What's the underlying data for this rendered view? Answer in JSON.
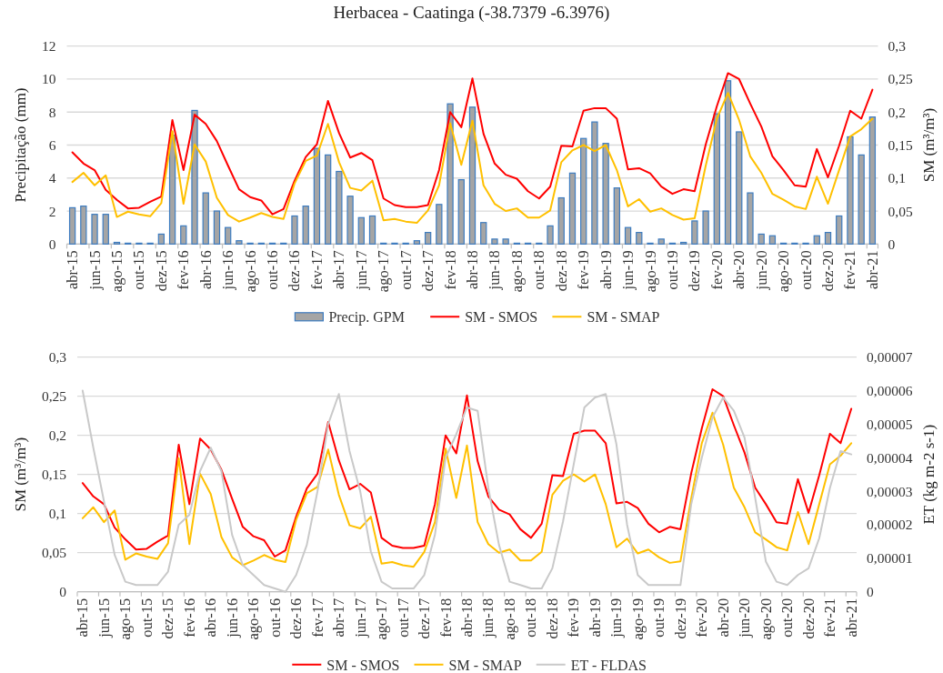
{
  "chart_data": [
    {
      "type": "bar",
      "title": "Herbacea - Caatinga (-38.7379 -6.3976)",
      "ylabel": "Precipitação (mm)",
      "y2label": "SM (m³/m³)",
      "categories": [
        "abr-15",
        null,
        "jun-15",
        null,
        "ago-15",
        null,
        "out-15",
        null,
        "dez-15",
        null,
        "fev-16",
        null,
        "abr-16",
        null,
        "jun-16",
        null,
        "ago-16",
        null,
        "out-16",
        null,
        "dez-16",
        null,
        "fev-17",
        null,
        "abr-17",
        null,
        "jun-17",
        null,
        "ago-17",
        null,
        "out-17",
        null,
        "dez-17",
        null,
        "fev-18",
        null,
        "abr-18",
        null,
        "jun-18",
        null,
        "ago-18",
        null,
        "out-18",
        null,
        "dez-18",
        null,
        "fev-19",
        null,
        "abr-19",
        null,
        "jun-19",
        null,
        "ago-19",
        null,
        "out-19",
        null,
        "dez-19",
        null,
        "fev-20",
        null,
        "abr-20",
        null,
        "jun-20",
        null,
        "ago-20",
        null,
        "out-20",
        null,
        "dez-20",
        null,
        "fev-21",
        null,
        "abr-21"
      ],
      "series": [
        {
          "name": "Precip. GPM",
          "color": "#a5a5a5",
          "values": [
            2.2,
            2.3,
            1.8,
            1.8,
            0.1,
            0.05,
            0.05,
            0.05,
            0.6,
            6.6,
            1.1,
            8.1,
            3.1,
            2.0,
            1.0,
            0.2,
            0.05,
            0.05,
            0.05,
            0.05,
            1.7,
            2.3,
            5.8,
            5.4,
            4.4,
            2.9,
            1.6,
            1.7,
            0.05,
            0.05,
            0.05,
            0.2,
            0.7,
            2.4,
            8.5,
            3.9,
            8.3,
            1.3,
            0.3,
            0.3,
            0.05,
            0.05,
            0.05,
            1.1,
            2.8,
            4.3,
            6.4,
            7.4,
            6.1,
            3.4,
            1.0,
            0.7,
            0.05,
            0.3,
            0.05,
            0.1,
            1.4,
            2.0,
            7.9,
            9.9,
            6.8,
            3.1,
            0.6,
            0.5,
            0.05,
            0.05,
            0.05,
            0.5,
            0.7,
            1.7,
            6.5,
            5.4,
            7.7
          ]
        },
        {
          "name": "SM - SMOS",
          "type": "line",
          "axis": "y2",
          "color": "#ff0000",
          "values": [
            0.139,
            0.122,
            0.112,
            0.082,
            0.067,
            0.054,
            0.055,
            0.064,
            0.072,
            0.188,
            0.112,
            0.196,
            0.182,
            0.156,
            0.119,
            0.083,
            0.071,
            0.066,
            0.045,
            0.053,
            0.096,
            0.132,
            0.151,
            0.217,
            0.168,
            0.131,
            0.138,
            0.127,
            0.069,
            0.059,
            0.056,
            0.056,
            0.059,
            0.112,
            0.2,
            0.177,
            0.251,
            0.167,
            0.122,
            0.105,
            0.099,
            0.08,
            0.069,
            0.087,
            0.149,
            0.148,
            0.202,
            0.206,
            0.206,
            0.19,
            0.113,
            0.115,
            0.107,
            0.087,
            0.076,
            0.083,
            0.08,
            0.151,
            0.209,
            0.259,
            0.25,
            0.213,
            0.178,
            0.133,
            0.112,
            0.089,
            0.087,
            0.144,
            0.101,
            0.149,
            0.202,
            0.19,
            0.234
          ]
        },
        {
          "name": "SM - SMAP",
          "type": "line",
          "axis": "y2",
          "color": "#ffc000",
          "values": [
            0.094,
            0.108,
            0.089,
            0.104,
            0.041,
            0.049,
            0.045,
            0.042,
            0.062,
            0.171,
            0.061,
            0.151,
            0.125,
            0.07,
            0.044,
            0.034,
            0.04,
            0.047,
            0.041,
            0.038,
            0.092,
            0.126,
            0.134,
            0.182,
            0.124,
            0.085,
            0.081,
            0.096,
            0.036,
            0.038,
            0.034,
            0.032,
            0.051,
            0.089,
            0.183,
            0.12,
            0.187,
            0.089,
            0.061,
            0.05,
            0.054,
            0.04,
            0.04,
            0.051,
            0.124,
            0.142,
            0.15,
            0.141,
            0.15,
            0.112,
            0.057,
            0.068,
            0.049,
            0.054,
            0.044,
            0.037,
            0.039,
            0.119,
            0.19,
            0.229,
            0.188,
            0.133,
            0.108,
            0.076,
            0.067,
            0.057,
            0.053,
            0.102,
            0.061,
            0.112,
            0.163,
            0.174,
            0.19
          ]
        }
      ],
      "ylim": [
        0,
        12
      ],
      "yticks": [
        0,
        2,
        4,
        6,
        8,
        10,
        12
      ],
      "y2lim": [
        0,
        0.3
      ],
      "y2ticks": [
        0,
        {
          "value": 0.05,
          "label": "0,05"
        },
        {
          "value": 0.1,
          "label": "0,1"
        },
        {
          "value": 0.15,
          "label": "0,15"
        },
        {
          "value": 0.2,
          "label": "0,2"
        },
        {
          "value": 0.25,
          "label": "0,25"
        },
        {
          "value": 0.3,
          "label": "0,3"
        }
      ],
      "grid": "y",
      "legend": "bottom"
    },
    {
      "type": "line",
      "ylabel": "SM (m³/m³)",
      "y2label": "ET (kg m-2 s-1)",
      "categories": [
        "abr-15",
        null,
        "jun-15",
        null,
        "ago-15",
        null,
        "out-15",
        null,
        "dez-15",
        null,
        "fev-16",
        null,
        "abr-16",
        null,
        "jun-16",
        null,
        "ago-16",
        null,
        "out-16",
        null,
        "dez-16",
        null,
        "fev-17",
        null,
        "abr-17",
        null,
        "jun-17",
        null,
        "ago-17",
        null,
        "out-17",
        null,
        "dez-17",
        null,
        "fev-18",
        null,
        "abr-18",
        null,
        "jun-18",
        null,
        "ago-18",
        null,
        "out-18",
        null,
        "dez-18",
        null,
        "fev-19",
        null,
        "abr-19",
        null,
        "jun-19",
        null,
        "ago-19",
        null,
        "out-19",
        null,
        "dez-19",
        null,
        "fev-20",
        null,
        "abr-20",
        null,
        "jun-20",
        null,
        "ago-20",
        null,
        "out-20",
        null,
        "dez-20",
        null,
        "fev-21",
        null,
        "abr-21"
      ],
      "series": [
        {
          "name": "SM - SMOS",
          "color": "#ff0000",
          "values": [
            0.139,
            0.122,
            0.112,
            0.082,
            0.067,
            0.054,
            0.055,
            0.064,
            0.072,
            0.188,
            0.112,
            0.196,
            0.182,
            0.156,
            0.119,
            0.083,
            0.071,
            0.066,
            0.045,
            0.053,
            0.096,
            0.132,
            0.151,
            0.217,
            0.168,
            0.131,
            0.138,
            0.127,
            0.069,
            0.059,
            0.056,
            0.056,
            0.059,
            0.112,
            0.2,
            0.177,
            0.251,
            0.167,
            0.122,
            0.105,
            0.099,
            0.08,
            0.069,
            0.087,
            0.149,
            0.148,
            0.202,
            0.206,
            0.206,
            0.19,
            0.113,
            0.115,
            0.107,
            0.087,
            0.076,
            0.083,
            0.08,
            0.151,
            0.209,
            0.259,
            0.25,
            0.213,
            0.178,
            0.133,
            0.112,
            0.089,
            0.087,
            0.144,
            0.101,
            0.149,
            0.202,
            0.19,
            0.234
          ]
        },
        {
          "name": "SM - SMAP",
          "color": "#ffc000",
          "values": [
            0.094,
            0.108,
            0.089,
            0.104,
            0.041,
            0.049,
            0.045,
            0.042,
            0.062,
            0.171,
            0.061,
            0.151,
            0.125,
            0.07,
            0.044,
            0.034,
            0.04,
            0.047,
            0.041,
            0.038,
            0.092,
            0.126,
            0.134,
            0.182,
            0.124,
            0.085,
            0.081,
            0.096,
            0.036,
            0.038,
            0.034,
            0.032,
            0.051,
            0.089,
            0.183,
            0.12,
            0.187,
            0.089,
            0.061,
            0.05,
            0.054,
            0.04,
            0.04,
            0.051,
            0.124,
            0.142,
            0.15,
            0.141,
            0.15,
            0.112,
            0.057,
            0.068,
            0.049,
            0.054,
            0.044,
            0.037,
            0.039,
            0.119,
            0.19,
            0.229,
            0.188,
            0.133,
            0.108,
            0.076,
            0.067,
            0.057,
            0.053,
            0.102,
            0.061,
            0.112,
            0.163,
            0.174,
            0.19
          ]
        },
        {
          "name": "ET - FLDAS",
          "axis": "y2",
          "color": "#c9c9c9",
          "values": [
            6e-05,
            4.3e-05,
            2.7e-05,
            1.1e-05,
            3e-06,
            2e-06,
            2e-06,
            2e-06,
            6e-06,
            2e-05,
            2.3e-05,
            3.6e-05,
            4.3e-05,
            3.6e-05,
            1.7e-05,
            8e-06,
            5e-06,
            2e-06,
            1e-06,
            0,
            5e-06,
            1.4e-05,
            3e-05,
            5e-05,
            5.9e-05,
            4.2e-05,
            3e-05,
            1.2e-05,
            3e-06,
            1e-06,
            1e-06,
            1e-06,
            5e-06,
            1.7e-05,
            4e-05,
            4.7e-05,
            5.5e-05,
            5.4e-05,
            3.1e-05,
            1.4e-05,
            3e-06,
            2e-06,
            1e-06,
            1e-06,
            7e-06,
            2.1e-05,
            3.8e-05,
            5.5e-05,
            5.8e-05,
            5.9e-05,
            4.4e-05,
            2e-05,
            5e-06,
            2e-06,
            2e-06,
            2e-06,
            2e-06,
            2.6e-05,
            4e-05,
            5.2e-05,
            5.8e-05,
            5.4e-05,
            4.6e-05,
            2.8e-05,
            9e-06,
            3e-06,
            2e-06,
            5e-06,
            7e-06,
            1.6e-05,
            3.1e-05,
            4.2e-05,
            4.1e-05
          ]
        }
      ],
      "ylim": [
        0,
        0.3
      ],
      "yticks": [
        0,
        {
          "value": 0.05,
          "label": "0,05"
        },
        {
          "value": 0.1,
          "label": "0,1"
        },
        {
          "value": 0.15,
          "label": "0,15"
        },
        {
          "value": 0.2,
          "label": "0,2"
        },
        {
          "value": 0.25,
          "label": "0,25"
        },
        {
          "value": 0.3,
          "label": "0,3"
        }
      ],
      "y2lim": [
        0,
        7e-05
      ],
      "y2ticks": [
        0,
        {
          "value": 1e-05,
          "label": "0,00001"
        },
        {
          "value": 2e-05,
          "label": "0,00002"
        },
        {
          "value": 3e-05,
          "label": "0,00003"
        },
        {
          "value": 4e-05,
          "label": "0,00004"
        },
        {
          "value": 5e-05,
          "label": "0,00005"
        },
        {
          "value": 6e-05,
          "label": "0,00006"
        },
        {
          "value": 7e-05,
          "label": "0,00007"
        }
      ],
      "grid": "y",
      "legend": "bottom"
    }
  ]
}
